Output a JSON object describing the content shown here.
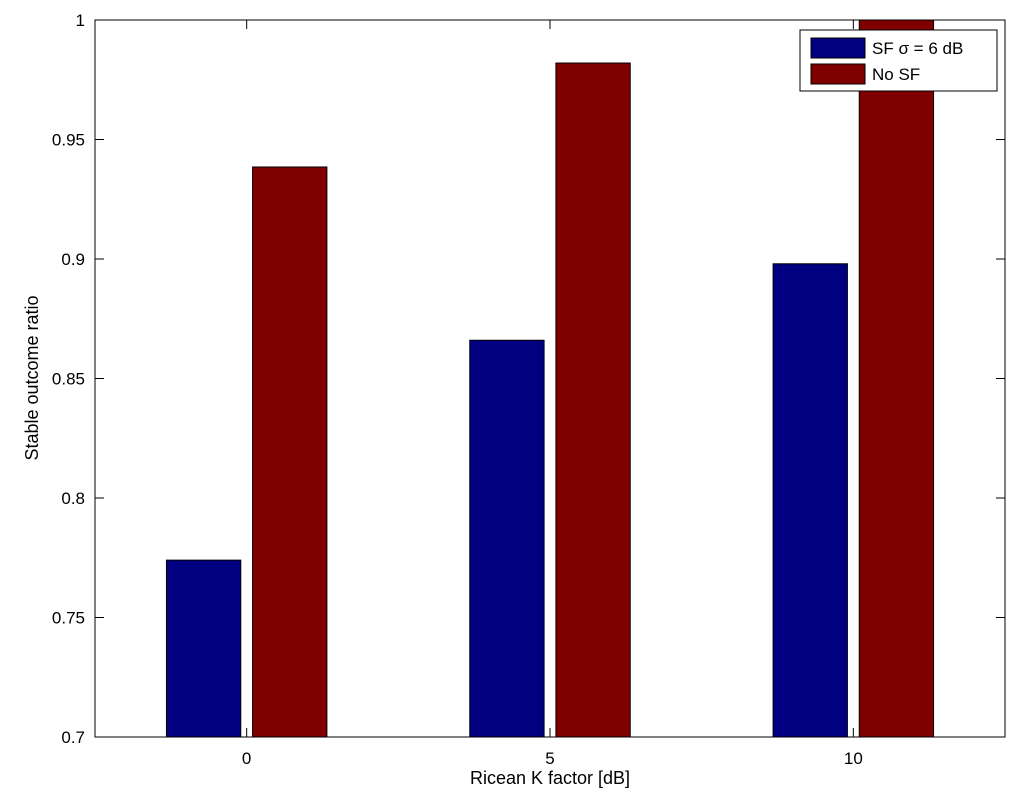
{
  "chart_data": {
    "type": "bar",
    "categories": [
      "0",
      "5",
      "10"
    ],
    "series": [
      {
        "name": "SF σ = 6 dB",
        "color": "#000080",
        "values": [
          0.774,
          0.866,
          0.898
        ]
      },
      {
        "name": "No SF",
        "color": "#800000",
        "values": [
          0.9385,
          0.982,
          1.0
        ]
      }
    ],
    "xlabel": "Ricean K factor [dB]",
    "ylabel": "Stable outcome ratio",
    "ylim": [
      0.7,
      1.0
    ],
    "yticks": [
      0.7,
      0.75,
      0.8,
      0.85,
      0.9,
      0.95,
      1
    ],
    "ytick_labels": [
      "0.7",
      "0.75",
      "0.8",
      "0.85",
      "0.9",
      "0.95",
      "1"
    ],
    "grid": false,
    "legend_position": "top-right"
  }
}
